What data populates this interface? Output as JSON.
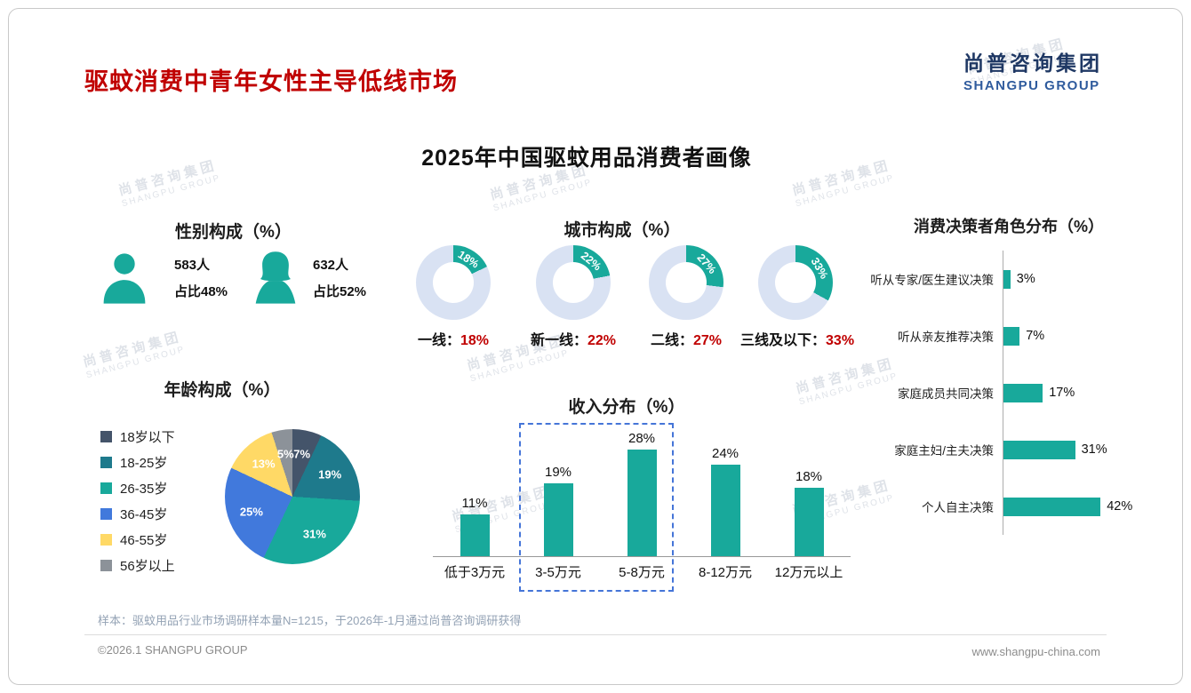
{
  "page": {
    "title": "驱蚊消费中青年女性主导低线市场",
    "logo_cn": "尚普咨询集团",
    "logo_en": "SHANGPU GROUP",
    "main_title": "2025年中国驱蚊用品消费者画像",
    "footnote": "样本：驱蚊用品行业市场调研样本量N=1215，于2026年-1月通过尚普咨询调研获得",
    "footer_left": "©2026.1 SHANGPU GROUP",
    "footer_right": "www.shangpu-china.com",
    "watermark_cn": "尚普咨询集团",
    "watermark_en": "SHANGPU GROUP"
  },
  "colors": {
    "accent_teal": "#18A99B",
    "title_red": "#C00000",
    "logo_navy": "#1F3864",
    "donut_track": "#D9E2F3",
    "pie_palette": [
      "#44546A",
      "#1E7A8C",
      "#18A99B",
      "#4179DC",
      "#FFD966",
      "#8C9299"
    ]
  },
  "gender": {
    "title": "性别构成（%）",
    "male": {
      "count": "583人",
      "share": "占比48%"
    },
    "female": {
      "count": "632人",
      "share": "占比52%"
    }
  },
  "chart_data": [
    {
      "id": "city",
      "type": "pie",
      "variant": "donut-multiples",
      "title": "城市构成（%）",
      "categories": [
        "一线",
        "新一线",
        "二线",
        "三线及以下"
      ],
      "values": [
        18,
        22,
        27,
        33
      ],
      "label_format": "{category}：{value}%"
    },
    {
      "id": "age",
      "type": "pie",
      "title": "年龄构成（%）",
      "categories": [
        "18岁以下",
        "18-25岁",
        "26-35岁",
        "36-45岁",
        "46-55岁",
        "56岁以上"
      ],
      "values": [
        7,
        19,
        31,
        25,
        13,
        5
      ],
      "legend_position": "left"
    },
    {
      "id": "income",
      "type": "bar",
      "title": "收入分布（%）",
      "categories": [
        "低于3万元",
        "3-5万元",
        "5-8万元",
        "8-12万元",
        "12万元以上"
      ],
      "values": [
        11,
        19,
        28,
        24,
        18
      ],
      "highlight_categories": [
        "3-5万元",
        "5-8万元"
      ],
      "ylim": [
        0,
        30
      ],
      "grid": false
    },
    {
      "id": "decision",
      "type": "bar",
      "orientation": "horizontal",
      "title": "消费决策者角色分布（%）",
      "categories": [
        "听从专家/医生建议决策",
        "听从亲友推荐决策",
        "家庭成员共同决策",
        "家庭主妇/主夫决策",
        "个人自主决策"
      ],
      "values": [
        3,
        7,
        17,
        31,
        42
      ],
      "xlim": [
        0,
        50
      ],
      "grid": false
    }
  ]
}
